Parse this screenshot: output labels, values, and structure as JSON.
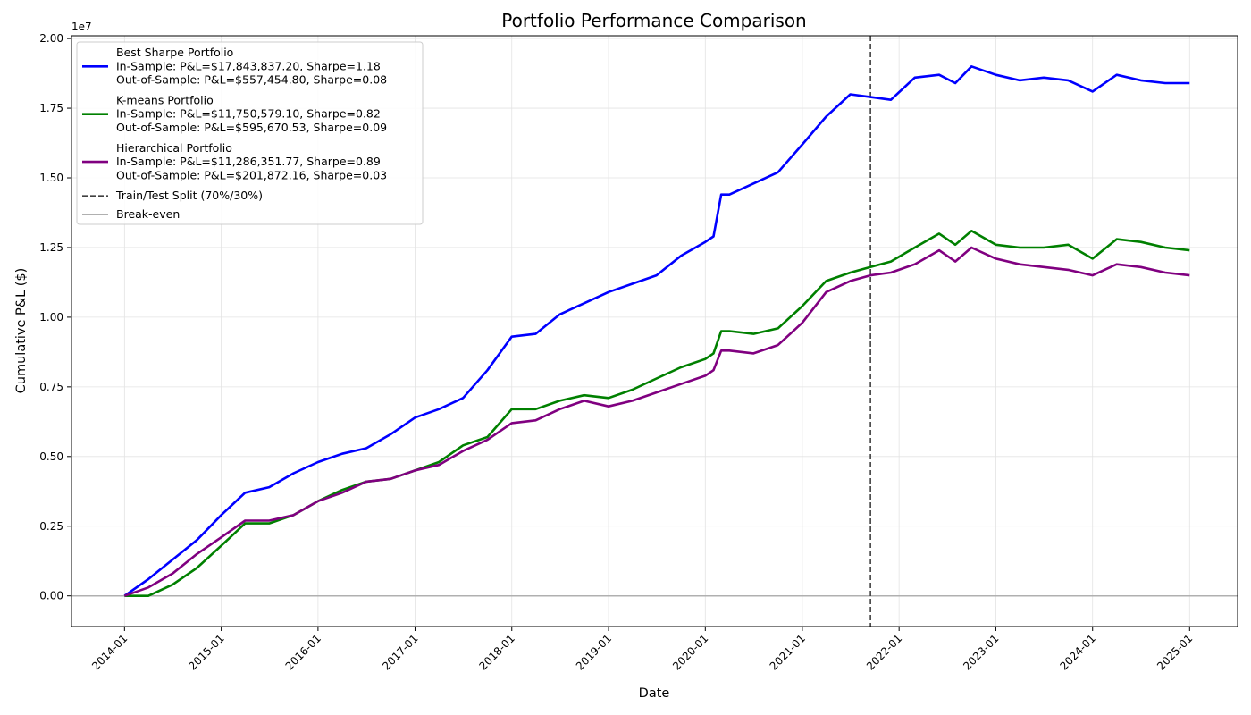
{
  "chart_data": {
    "type": "line",
    "title": "Portfolio Performance Comparison",
    "xlabel": "Date",
    "ylabel": "Cumulative P&L ($)",
    "y_offset_label": "1e7",
    "x_domain": [
      "2013-06-15",
      "2025-07-01"
    ],
    "ylim": [
      -1100000,
      20100000
    ],
    "x_ticks": [
      "2014-01",
      "2015-01",
      "2016-01",
      "2017-01",
      "2018-01",
      "2019-01",
      "2020-01",
      "2021-01",
      "2022-01",
      "2023-01",
      "2024-01",
      "2025-01"
    ],
    "y_ticks": [
      0,
      2500000,
      5000000,
      7500000,
      10000000,
      12500000,
      15000000,
      17500000,
      20000000
    ],
    "y_tick_labels": [
      "0.00",
      "0.25",
      "0.50",
      "0.75",
      "1.00",
      "1.25",
      "1.50",
      "1.75",
      "2.00"
    ],
    "grid": true,
    "legend_position": "top-left",
    "split": {
      "date": "2021-09-15",
      "label": "Train/Test Split (70%/30%)"
    },
    "baseline": {
      "value": 0,
      "label": "Break-even"
    },
    "series": [
      {
        "name": "Best Sharpe Portfolio",
        "legend_lines": [
          "In-Sample: P&L=$17,843,837.20, Sharpe=1.18",
          "Out-of-Sample: P&L=$557,454.80, Sharpe=0.08"
        ],
        "color": "#0000ff",
        "points": [
          [
            "2014-01-01",
            0
          ],
          [
            "2014-04-01",
            600000
          ],
          [
            "2014-07-01",
            1300000
          ],
          [
            "2014-10-01",
            2000000
          ],
          [
            "2015-01-01",
            2900000
          ],
          [
            "2015-04-01",
            3700000
          ],
          [
            "2015-07-01",
            3900000
          ],
          [
            "2015-10-01",
            4400000
          ],
          [
            "2016-01-01",
            4800000
          ],
          [
            "2016-04-01",
            5100000
          ],
          [
            "2016-07-01",
            5300000
          ],
          [
            "2016-10-01",
            5800000
          ],
          [
            "2017-01-01",
            6400000
          ],
          [
            "2017-04-01",
            6700000
          ],
          [
            "2017-07-01",
            7100000
          ],
          [
            "2017-10-01",
            8100000
          ],
          [
            "2018-01-01",
            9300000
          ],
          [
            "2018-04-01",
            9400000
          ],
          [
            "2018-07-01",
            10100000
          ],
          [
            "2018-10-01",
            10500000
          ],
          [
            "2019-01-01",
            10900000
          ],
          [
            "2019-04-01",
            11200000
          ],
          [
            "2019-07-01",
            11500000
          ],
          [
            "2019-10-01",
            12200000
          ],
          [
            "2020-01-01",
            12700000
          ],
          [
            "2020-02-01",
            12900000
          ],
          [
            "2020-03-01",
            14400000
          ],
          [
            "2020-04-01",
            14400000
          ],
          [
            "2020-07-01",
            14800000
          ],
          [
            "2020-10-01",
            15200000
          ],
          [
            "2021-01-01",
            16200000
          ],
          [
            "2021-04-01",
            17200000
          ],
          [
            "2021-07-01",
            18000000
          ],
          [
            "2021-09-15",
            17900000
          ],
          [
            "2021-12-01",
            17800000
          ],
          [
            "2022-03-01",
            18600000
          ],
          [
            "2022-06-01",
            18700000
          ],
          [
            "2022-08-01",
            18400000
          ],
          [
            "2022-10-01",
            19000000
          ],
          [
            "2023-01-01",
            18700000
          ],
          [
            "2023-04-01",
            18500000
          ],
          [
            "2023-07-01",
            18600000
          ],
          [
            "2023-10-01",
            18500000
          ],
          [
            "2024-01-01",
            18100000
          ],
          [
            "2024-04-01",
            18700000
          ],
          [
            "2024-07-01",
            18500000
          ],
          [
            "2024-10-01",
            18400000
          ],
          [
            "2025-01-01",
            18400000
          ]
        ]
      },
      {
        "name": "K-means Portfolio",
        "legend_lines": [
          "In-Sample: P&L=$11,750,579.10, Sharpe=0.82",
          "Out-of-Sample: P&L=$595,670.53, Sharpe=0.09"
        ],
        "color": "#008000",
        "points": [
          [
            "2014-01-01",
            0
          ],
          [
            "2014-04-01",
            0
          ],
          [
            "2014-07-01",
            400000
          ],
          [
            "2014-10-01",
            1000000
          ],
          [
            "2015-01-01",
            1800000
          ],
          [
            "2015-04-01",
            2600000
          ],
          [
            "2015-07-01",
            2600000
          ],
          [
            "2015-10-01",
            2900000
          ],
          [
            "2016-01-01",
            3400000
          ],
          [
            "2016-04-01",
            3800000
          ],
          [
            "2016-07-01",
            4100000
          ],
          [
            "2016-10-01",
            4200000
          ],
          [
            "2017-01-01",
            4500000
          ],
          [
            "2017-04-01",
            4800000
          ],
          [
            "2017-07-01",
            5400000
          ],
          [
            "2017-10-01",
            5700000
          ],
          [
            "2018-01-01",
            6700000
          ],
          [
            "2018-04-01",
            6700000
          ],
          [
            "2018-07-01",
            7000000
          ],
          [
            "2018-10-01",
            7200000
          ],
          [
            "2019-01-01",
            7100000
          ],
          [
            "2019-04-01",
            7400000
          ],
          [
            "2019-07-01",
            7800000
          ],
          [
            "2019-10-01",
            8200000
          ],
          [
            "2020-01-01",
            8500000
          ],
          [
            "2020-02-01",
            8700000
          ],
          [
            "2020-03-01",
            9500000
          ],
          [
            "2020-04-01",
            9500000
          ],
          [
            "2020-07-01",
            9400000
          ],
          [
            "2020-10-01",
            9600000
          ],
          [
            "2021-01-01",
            10400000
          ],
          [
            "2021-04-01",
            11300000
          ],
          [
            "2021-07-01",
            11600000
          ],
          [
            "2021-09-15",
            11800000
          ],
          [
            "2021-12-01",
            12000000
          ],
          [
            "2022-03-01",
            12500000
          ],
          [
            "2022-06-01",
            13000000
          ],
          [
            "2022-08-01",
            12600000
          ],
          [
            "2022-10-01",
            13100000
          ],
          [
            "2023-01-01",
            12600000
          ],
          [
            "2023-04-01",
            12500000
          ],
          [
            "2023-07-01",
            12500000
          ],
          [
            "2023-10-01",
            12600000
          ],
          [
            "2024-01-01",
            12100000
          ],
          [
            "2024-04-01",
            12800000
          ],
          [
            "2024-07-01",
            12700000
          ],
          [
            "2024-10-01",
            12500000
          ],
          [
            "2025-01-01",
            12400000
          ]
        ]
      },
      {
        "name": "Hierarchical Portfolio",
        "legend_lines": [
          "In-Sample: P&L=$11,286,351.77, Sharpe=0.89",
          "Out-of-Sample: P&L=$201,872.16, Sharpe=0.03"
        ],
        "color": "#800080",
        "points": [
          [
            "2014-01-01",
            0
          ],
          [
            "2014-04-01",
            300000
          ],
          [
            "2014-07-01",
            800000
          ],
          [
            "2014-10-01",
            1500000
          ],
          [
            "2015-01-01",
            2100000
          ],
          [
            "2015-04-01",
            2700000
          ],
          [
            "2015-07-01",
            2700000
          ],
          [
            "2015-10-01",
            2900000
          ],
          [
            "2016-01-01",
            3400000
          ],
          [
            "2016-04-01",
            3700000
          ],
          [
            "2016-07-01",
            4100000
          ],
          [
            "2016-10-01",
            4200000
          ],
          [
            "2017-01-01",
            4500000
          ],
          [
            "2017-04-01",
            4700000
          ],
          [
            "2017-07-01",
            5200000
          ],
          [
            "2017-10-01",
            5600000
          ],
          [
            "2018-01-01",
            6200000
          ],
          [
            "2018-04-01",
            6300000
          ],
          [
            "2018-07-01",
            6700000
          ],
          [
            "2018-10-01",
            7000000
          ],
          [
            "2019-01-01",
            6800000
          ],
          [
            "2019-04-01",
            7000000
          ],
          [
            "2019-07-01",
            7300000
          ],
          [
            "2019-10-01",
            7600000
          ],
          [
            "2020-01-01",
            7900000
          ],
          [
            "2020-02-01",
            8100000
          ],
          [
            "2020-03-01",
            8800000
          ],
          [
            "2020-04-01",
            8800000
          ],
          [
            "2020-07-01",
            8700000
          ],
          [
            "2020-10-01",
            9000000
          ],
          [
            "2021-01-01",
            9800000
          ],
          [
            "2021-04-01",
            10900000
          ],
          [
            "2021-07-01",
            11300000
          ],
          [
            "2021-09-15",
            11500000
          ],
          [
            "2021-12-01",
            11600000
          ],
          [
            "2022-03-01",
            11900000
          ],
          [
            "2022-06-01",
            12400000
          ],
          [
            "2022-08-01",
            12000000
          ],
          [
            "2022-10-01",
            12500000
          ],
          [
            "2023-01-01",
            12100000
          ],
          [
            "2023-04-01",
            11900000
          ],
          [
            "2023-07-01",
            11800000
          ],
          [
            "2023-10-01",
            11700000
          ],
          [
            "2024-01-01",
            11500000
          ],
          [
            "2024-04-01",
            11900000
          ],
          [
            "2024-07-01",
            11800000
          ],
          [
            "2024-10-01",
            11600000
          ],
          [
            "2025-01-01",
            11500000
          ]
        ]
      }
    ],
    "colors": {
      "split_line": "#404040",
      "baseline": "#b0b0b0"
    }
  }
}
